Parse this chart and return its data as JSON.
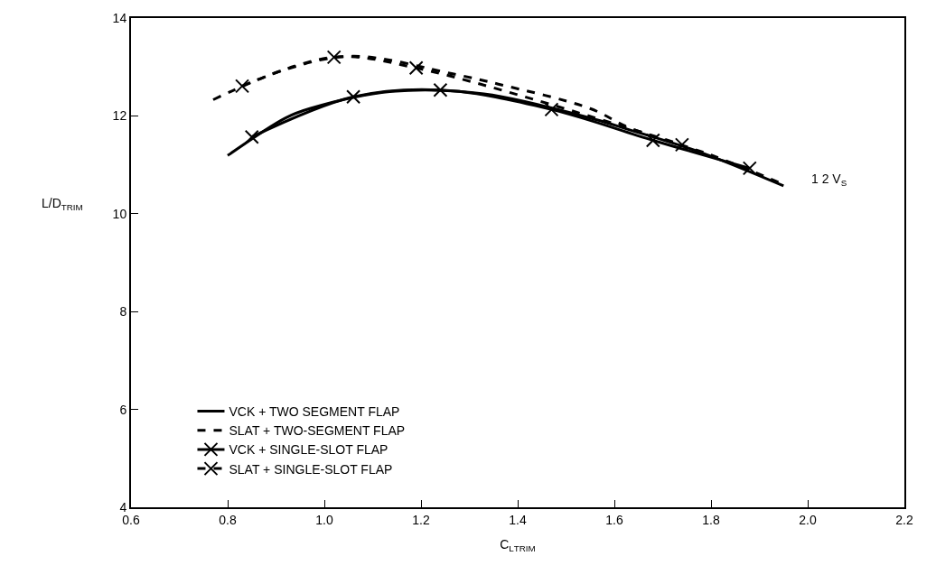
{
  "chart_data": {
    "type": "line",
    "xlabel": "C$_{L}$$_{TRIM}$",
    "ylabel": "L/D$_{TRIM}$",
    "xlim": [
      0.6,
      2.2
    ],
    "xticks": [
      0.6,
      0.8,
      {
        "value": 1.0,
        "label": "1.0"
      },
      1.2,
      1.4,
      1.6,
      1.8,
      {
        "value": 2.0,
        "label": "2.0"
      },
      2.2
    ],
    "ylim": [
      4,
      14
    ],
    "yticks": [
      4,
      6,
      8,
      10,
      12,
      14
    ],
    "legend": "bottom left",
    "annotations": [
      "1 2 V$_{S}$"
    ],
    "series": [
      {
        "name": "VCK + TWO SEGMENT FLAP",
        "color": "#000000",
        "line_style": "solid",
        "marker": "none",
        "x": [
          0.8,
          0.92,
          0.97,
          1.14,
          1.33,
          1.56,
          1.63,
          1.78,
          1.95
        ],
        "values": [
          11.19,
          11.96,
          12.15,
          12.5,
          12.45,
          11.93,
          11.72,
          11.25,
          10.57
        ]
      },
      {
        "name": "SLAT + TWO-SEGMENT FLAP",
        "color": "#000000",
        "line_style": "dashed",
        "marker": "none",
        "x": [
          0.77,
          0.92,
          1.06,
          1.27,
          1.36,
          1.55,
          1.63,
          1.8,
          1.95
        ],
        "values": [
          12.33,
          12.95,
          13.22,
          12.85,
          12.65,
          12.15,
          11.76,
          11.2,
          10.6
        ]
      },
      {
        "name": "VCK + SINGLE-SLOT FLAP",
        "color": "#000000",
        "line_style": "solid",
        "marker": "cross",
        "x": [
          0.85,
          1.06,
          1.24,
          1.47,
          1.68,
          1.88
        ],
        "values": [
          11.57,
          12.39,
          12.53,
          12.13,
          11.5,
          10.93
        ]
      },
      {
        "name": "SLAT + SINGLE-SLOT FLAP",
        "color": "#000000",
        "line_style": "dashed",
        "marker": "cross",
        "x": [
          0.83,
          1.02,
          1.19,
          1.74
        ],
        "values": [
          12.61,
          13.2,
          12.98,
          11.41
        ]
      }
    ]
  }
}
